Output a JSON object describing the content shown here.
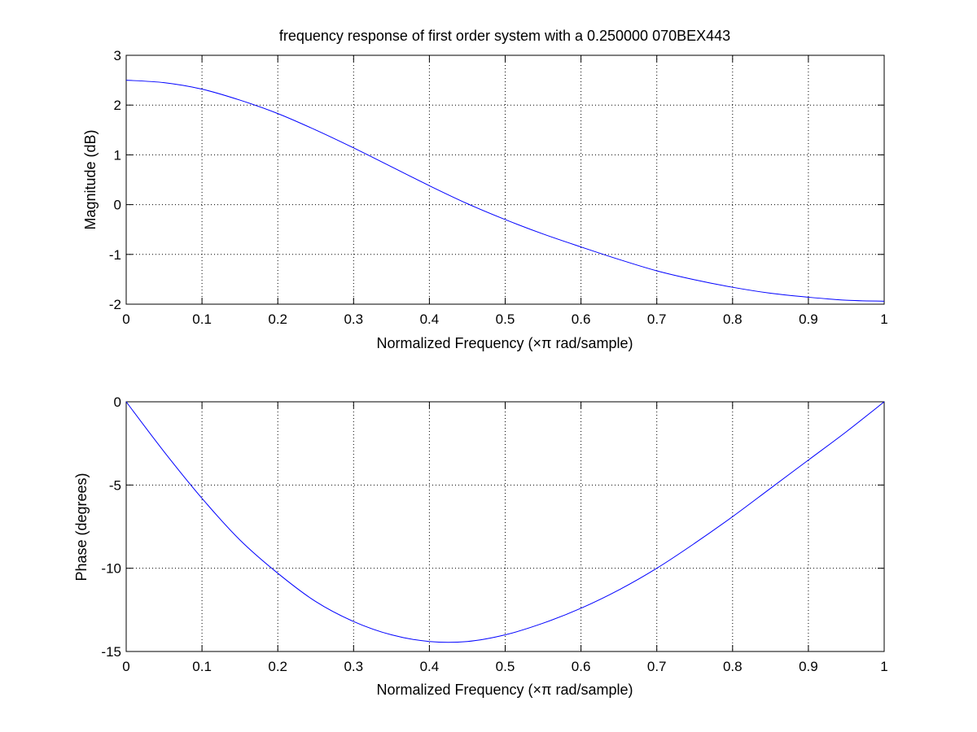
{
  "chart_data": [
    {
      "type": "line",
      "title": "frequency response of first order system with a 0.250000 070BEX443",
      "xlabel": "Normalized Frequency  (×π rad/sample)",
      "ylabel": "Magnitude (dB)",
      "xlim": [
        0,
        1
      ],
      "ylim": [
        -2,
        3
      ],
      "xticks": [
        0,
        0.1,
        0.2,
        0.3,
        0.4,
        0.5,
        0.6,
        0.7,
        0.8,
        0.9,
        1
      ],
      "xtick_labels": [
        "0",
        "0.1",
        "0.2",
        "0.3",
        "0.4",
        "0.5",
        "0.6",
        "0.7",
        "0.8",
        "0.9",
        "1"
      ],
      "yticks": [
        -2,
        -1,
        0,
        1,
        2,
        3
      ],
      "ytick_labels": [
        "-2",
        "-1",
        "0",
        "1",
        "2",
        "3"
      ],
      "grid": true,
      "color": "#0000ff",
      "series": [
        {
          "x": [
            0,
            0.05,
            0.1,
            0.15,
            0.2,
            0.25,
            0.3,
            0.35,
            0.4,
            0.45,
            0.5,
            0.55,
            0.6,
            0.65,
            0.7,
            0.75,
            0.8,
            0.85,
            0.9,
            0.95,
            1
          ],
          "values": [
            2.5,
            2.45,
            2.32,
            2.1,
            1.83,
            1.5,
            1.14,
            0.76,
            0.38,
            0.02,
            -0.3,
            -0.59,
            -0.85,
            -1.1,
            -1.33,
            -1.51,
            -1.66,
            -1.78,
            -1.86,
            -1.92,
            -1.94
          ]
        }
      ]
    },
    {
      "type": "line",
      "title": "",
      "xlabel": "Normalized Frequency  (×π rad/sample)",
      "ylabel": "Phase (degrees)",
      "xlim": [
        0,
        1
      ],
      "ylim": [
        -15,
        0
      ],
      "xticks": [
        0,
        0.1,
        0.2,
        0.3,
        0.4,
        0.5,
        0.6,
        0.7,
        0.8,
        0.9,
        1
      ],
      "xtick_labels": [
        "0",
        "0.1",
        "0.2",
        "0.3",
        "0.4",
        "0.5",
        "0.6",
        "0.7",
        "0.8",
        "0.9",
        "1"
      ],
      "yticks": [
        -15,
        -10,
        -5,
        0
      ],
      "ytick_labels": [
        "-15",
        "-10",
        "-5",
        "0"
      ],
      "grid": true,
      "color": "#0000ff",
      "series": [
        {
          "x": [
            0,
            0.05,
            0.1,
            0.15,
            0.2,
            0.25,
            0.3,
            0.35,
            0.4,
            0.45,
            0.5,
            0.55,
            0.6,
            0.65,
            0.7,
            0.75,
            0.8,
            0.85,
            0.9,
            0.95,
            1
          ],
          "values": [
            0,
            -3.0,
            -5.8,
            -8.3,
            -10.3,
            -12.0,
            -13.2,
            -14.0,
            -14.4,
            -14.4,
            -14.0,
            -13.3,
            -12.4,
            -11.3,
            -10.0,
            -8.5,
            -6.9,
            -5.2,
            -3.5,
            -1.8,
            0
          ]
        }
      ]
    }
  ]
}
